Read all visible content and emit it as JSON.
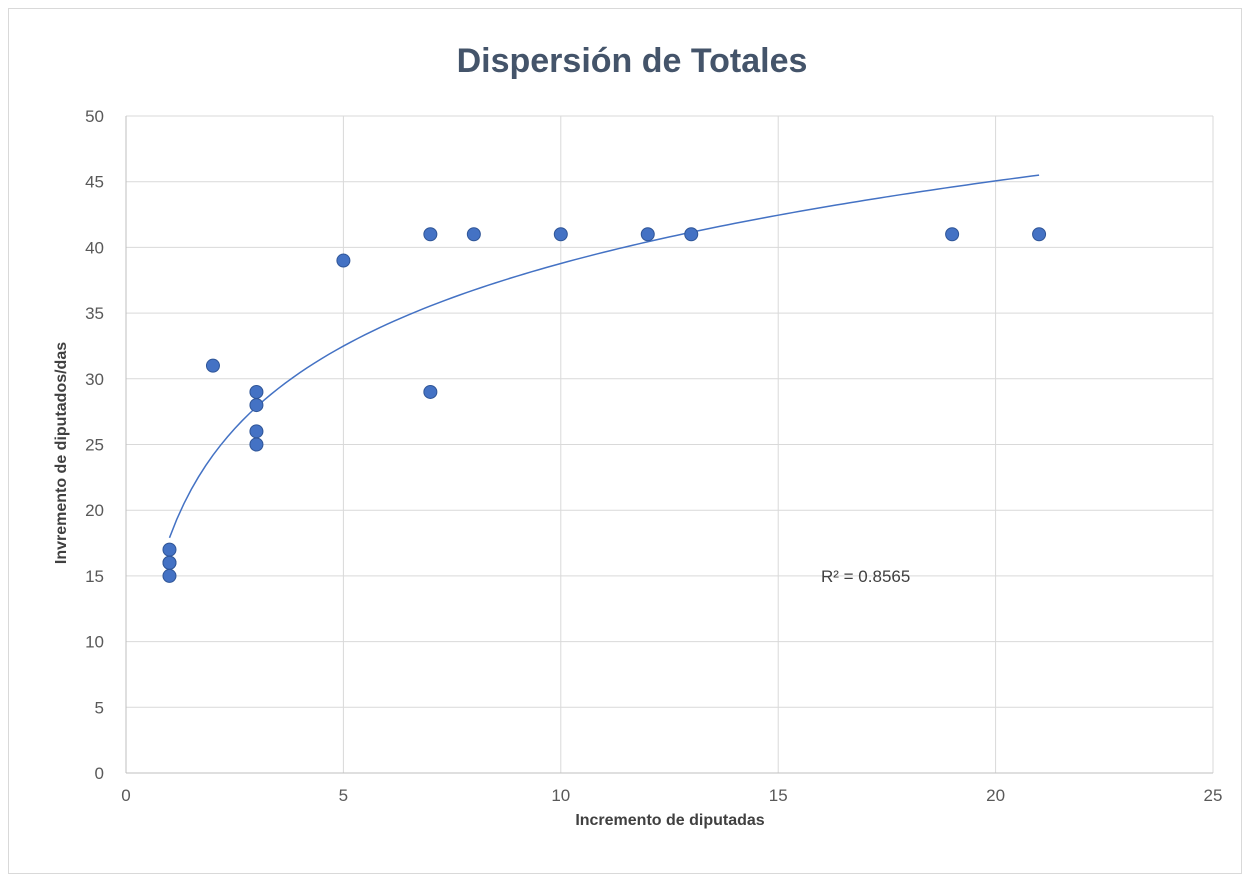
{
  "chart_data": {
    "type": "scatter",
    "title": "Dispersión de Totales",
    "xlabel": "Incremento de diputadas",
    "ylabel": "Invremento de diputados/das",
    "xlim": [
      0,
      25
    ],
    "ylim": [
      0,
      50
    ],
    "x_ticks": [
      "0",
      "5",
      "10",
      "15",
      "20",
      "25"
    ],
    "y_ticks": [
      "0",
      "5",
      "10",
      "15",
      "20",
      "25",
      "30",
      "35",
      "40",
      "45",
      "50"
    ],
    "grid": true,
    "legend": "none",
    "marker_color": "#4472c4",
    "points": [
      {
        "x": 1,
        "y": 17
      },
      {
        "x": 1,
        "y": 16
      },
      {
        "x": 1,
        "y": 16
      },
      {
        "x": 1,
        "y": 15
      },
      {
        "x": 2,
        "y": 31
      },
      {
        "x": 3,
        "y": 29
      },
      {
        "x": 3,
        "y": 28
      },
      {
        "x": 3,
        "y": 26
      },
      {
        "x": 3,
        "y": 25
      },
      {
        "x": 5,
        "y": 39
      },
      {
        "x": 7,
        "y": 41
      },
      {
        "x": 7,
        "y": 29
      },
      {
        "x": 8,
        "y": 41
      },
      {
        "x": 10,
        "y": 41
      },
      {
        "x": 12,
        "y": 41
      },
      {
        "x": 13,
        "y": 41
      },
      {
        "x": 19,
        "y": 41
      },
      {
        "x": 21,
        "y": 41
      }
    ],
    "trendline": {
      "type": "logarithmic",
      "color": "#4472c4",
      "x_range": [
        1,
        21
      ],
      "r2_label": "R² = 0.8565"
    }
  }
}
